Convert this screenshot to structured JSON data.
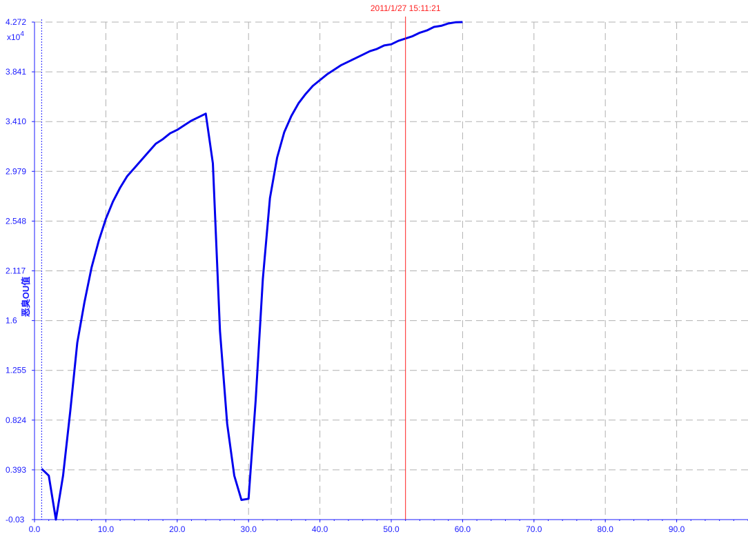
{
  "chart_data": {
    "type": "line",
    "ylabel": "恶臭OU值",
    "y_multiplier": "x10",
    "y_multiplier_exp": "4",
    "xlim": [
      0,
      100
    ],
    "ylim": [
      -0.03,
      4.272
    ],
    "x_ticks": [
      "0.0",
      "10.0",
      "20.0",
      "30.0",
      "40.0",
      "50.0",
      "60.0",
      "70.0",
      "80.0",
      "90.0"
    ],
    "y_ticks": [
      "-0.03",
      "0.393",
      "0.824",
      "1.255",
      "1.6",
      "2.117",
      "2.548",
      "2.979",
      "3.410",
      "3.841",
      "4.272"
    ],
    "grid": true,
    "marker": {
      "x": 52,
      "label": "2011/1/27 15:11:21",
      "color": "#ff2020"
    },
    "cursor_x": 1,
    "series": [
      {
        "color": "#0000ee",
        "x": [
          1,
          2,
          3,
          4,
          5,
          6,
          7,
          8,
          9,
          10,
          11,
          12,
          13,
          14,
          15,
          16,
          17,
          18,
          19,
          20,
          21,
          22,
          23,
          24,
          25,
          26,
          27,
          28,
          29,
          30,
          31,
          32,
          33,
          34,
          35,
          36,
          37,
          38,
          39,
          40,
          41,
          42,
          43,
          44,
          45,
          46,
          47,
          48,
          49,
          50,
          51,
          52,
          53,
          54,
          55,
          56,
          57,
          58,
          59,
          60
        ],
        "y": [
          0.41,
          0.35,
          -0.03,
          0.35,
          0.9,
          1.5,
          1.85,
          2.15,
          2.38,
          2.57,
          2.72,
          2.84,
          2.94,
          3.01,
          3.08,
          3.15,
          3.22,
          3.26,
          3.31,
          3.34,
          3.38,
          3.42,
          3.45,
          3.48,
          3.05,
          1.6,
          0.8,
          0.35,
          0.14,
          0.15,
          1.0,
          2.05,
          2.75,
          3.1,
          3.32,
          3.46,
          3.57,
          3.65,
          3.72,
          3.77,
          3.82,
          3.86,
          3.9,
          3.93,
          3.96,
          3.99,
          4.02,
          4.04,
          4.07,
          4.08,
          4.11,
          4.13,
          4.15,
          4.18,
          4.2,
          4.23,
          4.24,
          4.26,
          4.27,
          4.272
        ]
      }
    ]
  }
}
